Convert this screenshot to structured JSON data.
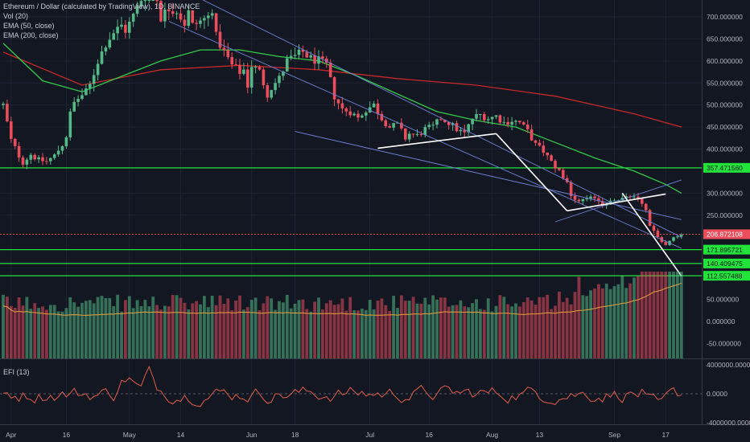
{
  "chart_data": {
    "type": "candlestick",
    "header": {
      "title": "Ethereum / Dollar (calculated by TradingView), 1D, BINANCE",
      "indicators": [
        "Vol (20)",
        "EMA (50, close)",
        "EMA (200, close)"
      ]
    },
    "price_axis": {
      "ticks": [
        {
          "value": 700,
          "label": "700.000000"
        },
        {
          "value": 650,
          "label": "650.000000"
        },
        {
          "value": 600,
          "label": "600.000000"
        },
        {
          "value": 550,
          "label": "550.000000"
        },
        {
          "value": 500,
          "label": "500.000000"
        },
        {
          "value": 450,
          "label": "450.000000"
        },
        {
          "value": 400,
          "label": "400.000000"
        },
        {
          "value": 300,
          "label": "300.000000"
        },
        {
          "value": 250,
          "label": "250.000000"
        }
      ],
      "ylim": [
        100,
        720
      ]
    },
    "volume_axis": {
      "ticks": [
        {
          "value": 50,
          "label": "50.000000"
        },
        {
          "value": 0,
          "label": "0.000000"
        },
        {
          "value": -50,
          "label": "-50.000000"
        }
      ]
    },
    "efi_panel": {
      "label": "EFI (13)",
      "ticks": [
        {
          "value": 4000000,
          "label": "4000000.0000"
        },
        {
          "value": 0,
          "label": "0.0000"
        },
        {
          "value": -4000000,
          "label": "-4000000.0000"
        }
      ]
    },
    "time_axis": {
      "ticks": [
        {
          "day": 2,
          "label": "Apr"
        },
        {
          "day": 16,
          "label": "16"
        },
        {
          "day": 32,
          "label": "May"
        },
        {
          "day": 45,
          "label": "14"
        },
        {
          "day": 63,
          "label": "Jun"
        },
        {
          "day": 74,
          "label": "18"
        },
        {
          "day": 93,
          "label": "Jul"
        },
        {
          "day": 108,
          "label": "16"
        },
        {
          "day": 124,
          "label": "Aug"
        },
        {
          "day": 136,
          "label": "13"
        },
        {
          "day": 155,
          "label": "Sep"
        },
        {
          "day": 168,
          "label": "17"
        }
      ]
    },
    "horizontal_levels": [
      {
        "value": 357.47156,
        "label": "357.471560"
      },
      {
        "value": 171.895721,
        "label": "171.895721"
      },
      {
        "value": 140.409475,
        "label": "140.409475"
      },
      {
        "value": 112.557488,
        "label": "112.557488"
      }
    ],
    "last_price": {
      "value": 206.872108,
      "label": "206.872108"
    },
    "colors": {
      "background": "#131722",
      "up": "#53b987",
      "down": "#eb4d5c",
      "ema50": "#35c94a",
      "ema200": "#c62828",
      "level": "#22e33a",
      "trendline": "#6e82d6",
      "drawing": "#ffffff",
      "efi": "#e25c4a",
      "vol_ma": "#e8a03a",
      "axis_text": "#b2b5be"
    },
    "price_path": [
      {
        "d": 0,
        "p": 500
      },
      {
        "d": 2,
        "p": 420
      },
      {
        "d": 4,
        "p": 385
      },
      {
        "d": 5,
        "p": 370
      },
      {
        "d": 7,
        "p": 388
      },
      {
        "d": 9,
        "p": 375
      },
      {
        "d": 11,
        "p": 372
      },
      {
        "d": 13,
        "p": 385
      },
      {
        "d": 15,
        "p": 410
      },
      {
        "d": 16,
        "p": 430
      },
      {
        "d": 17,
        "p": 480
      },
      {
        "d": 18,
        "p": 505
      },
      {
        "d": 19,
        "p": 515
      },
      {
        "d": 21,
        "p": 530
      },
      {
        "d": 22,
        "p": 545
      },
      {
        "d": 24,
        "p": 600
      },
      {
        "d": 26,
        "p": 640
      },
      {
        "d": 28,
        "p": 665
      },
      {
        "d": 30,
        "p": 680
      },
      {
        "d": 31,
        "p": 670
      },
      {
        "d": 32,
        "p": 685
      },
      {
        "d": 34,
        "p": 720
      },
      {
        "d": 36,
        "p": 760
      },
      {
        "d": 38,
        "p": 780
      },
      {
        "d": 40,
        "p": 700
      },
      {
        "d": 42,
        "p": 720
      },
      {
        "d": 44,
        "p": 715
      },
      {
        "d": 46,
        "p": 685
      },
      {
        "d": 47,
        "p": 710
      },
      {
        "d": 48,
        "p": 680
      },
      {
        "d": 50,
        "p": 690
      },
      {
        "d": 52,
        "p": 700
      },
      {
        "d": 53,
        "p": 720
      },
      {
        "d": 54,
        "p": 655
      },
      {
        "d": 56,
        "p": 620
      },
      {
        "d": 58,
        "p": 590
      },
      {
        "d": 60,
        "p": 575
      },
      {
        "d": 61,
        "p": 580
      },
      {
        "d": 62,
        "p": 545
      },
      {
        "d": 63,
        "p": 590
      },
      {
        "d": 65,
        "p": 575
      },
      {
        "d": 67,
        "p": 525
      },
      {
        "d": 68,
        "p": 540
      },
      {
        "d": 70,
        "p": 560
      },
      {
        "d": 72,
        "p": 600
      },
      {
        "d": 74,
        "p": 610
      },
      {
        "d": 76,
        "p": 620
      },
      {
        "d": 78,
        "p": 605
      },
      {
        "d": 80,
        "p": 600
      },
      {
        "d": 82,
        "p": 590
      },
      {
        "d": 84,
        "p": 520
      },
      {
        "d": 86,
        "p": 490
      },
      {
        "d": 88,
        "p": 485
      },
      {
        "d": 90,
        "p": 470
      },
      {
        "d": 92,
        "p": 490
      },
      {
        "d": 94,
        "p": 500
      },
      {
        "d": 96,
        "p": 470
      },
      {
        "d": 98,
        "p": 450
      },
      {
        "d": 100,
        "p": 455
      },
      {
        "d": 102,
        "p": 425
      },
      {
        "d": 103,
        "p": 435
      },
      {
        "d": 105,
        "p": 430
      },
      {
        "d": 107,
        "p": 445
      },
      {
        "d": 109,
        "p": 450
      },
      {
        "d": 111,
        "p": 470
      },
      {
        "d": 113,
        "p": 460
      },
      {
        "d": 115,
        "p": 445
      },
      {
        "d": 117,
        "p": 435
      },
      {
        "d": 119,
        "p": 470
      },
      {
        "d": 121,
        "p": 478
      },
      {
        "d": 123,
        "p": 470
      },
      {
        "d": 125,
        "p": 475
      },
      {
        "d": 127,
        "p": 460
      },
      {
        "d": 129,
        "p": 465
      },
      {
        "d": 131,
        "p": 460
      },
      {
        "d": 133,
        "p": 440
      },
      {
        "d": 135,
        "p": 410
      },
      {
        "d": 137,
        "p": 395
      },
      {
        "d": 139,
        "p": 370
      },
      {
        "d": 141,
        "p": 350
      },
      {
        "d": 143,
        "p": 320
      },
      {
        "d": 144,
        "p": 290
      },
      {
        "d": 146,
        "p": 280
      },
      {
        "d": 148,
        "p": 285
      },
      {
        "d": 150,
        "p": 290
      },
      {
        "d": 152,
        "p": 275
      },
      {
        "d": 154,
        "p": 280
      },
      {
        "d": 156,
        "p": 285
      },
      {
        "d": 158,
        "p": 290
      },
      {
        "d": 160,
        "p": 295
      },
      {
        "d": 162,
        "p": 280
      },
      {
        "d": 163,
        "p": 260
      },
      {
        "d": 164,
        "p": 225
      },
      {
        "d": 166,
        "p": 200
      },
      {
        "d": 168,
        "p": 185
      },
      {
        "d": 170,
        "p": 200
      },
      {
        "d": 172,
        "p": 207
      }
    ],
    "ema50_path": [
      {
        "d": 0,
        "p": 640
      },
      {
        "d": 10,
        "p": 555
      },
      {
        "d": 20,
        "p": 530
      },
      {
        "d": 30,
        "p": 565
      },
      {
        "d": 40,
        "p": 600
      },
      {
        "d": 50,
        "p": 625
      },
      {
        "d": 60,
        "p": 625
      },
      {
        "d": 70,
        "p": 610
      },
      {
        "d": 80,
        "p": 600
      },
      {
        "d": 90,
        "p": 565
      },
      {
        "d": 100,
        "p": 525
      },
      {
        "d": 110,
        "p": 485
      },
      {
        "d": 120,
        "p": 465
      },
      {
        "d": 130,
        "p": 450
      },
      {
        "d": 140,
        "p": 415
      },
      {
        "d": 150,
        "p": 380
      },
      {
        "d": 160,
        "p": 350
      },
      {
        "d": 168,
        "p": 320
      },
      {
        "d": 172,
        "p": 300
      }
    ],
    "ema200_path": [
      {
        "d": 0,
        "p": 620
      },
      {
        "d": 20,
        "p": 545
      },
      {
        "d": 40,
        "p": 580
      },
      {
        "d": 60,
        "p": 590
      },
      {
        "d": 80,
        "p": 580
      },
      {
        "d": 100,
        "p": 560
      },
      {
        "d": 120,
        "p": 545
      },
      {
        "d": 140,
        "p": 520
      },
      {
        "d": 160,
        "p": 480
      },
      {
        "d": 172,
        "p": 450
      }
    ],
    "trendlines": [
      {
        "kind": "channel",
        "x1": 30,
        "y1": 830,
        "x2": 172,
        "y2": 200
      },
      {
        "kind": "channel",
        "x1": 42,
        "y1": 690,
        "x2": 172,
        "y2": 175
      },
      {
        "kind": "channel",
        "x1": 74,
        "y1": 440,
        "x2": 172,
        "y2": 240
      },
      {
        "kind": "channel",
        "x1": 140,
        "y1": 235,
        "x2": 172,
        "y2": 330
      },
      {
        "kind": "drawing",
        "x1": 95,
        "y1": 402,
        "x2": 125,
        "y2": 435
      },
      {
        "kind": "drawing",
        "x1": 125,
        "y1": 435,
        "x2": 143,
        "y2": 260
      },
      {
        "kind": "drawing",
        "x1": 143,
        "y1": 260,
        "x2": 168,
        "y2": 298
      },
      {
        "kind": "drawing",
        "x1": 157,
        "y1": 300,
        "x2": 172,
        "y2": 112
      }
    ]
  }
}
